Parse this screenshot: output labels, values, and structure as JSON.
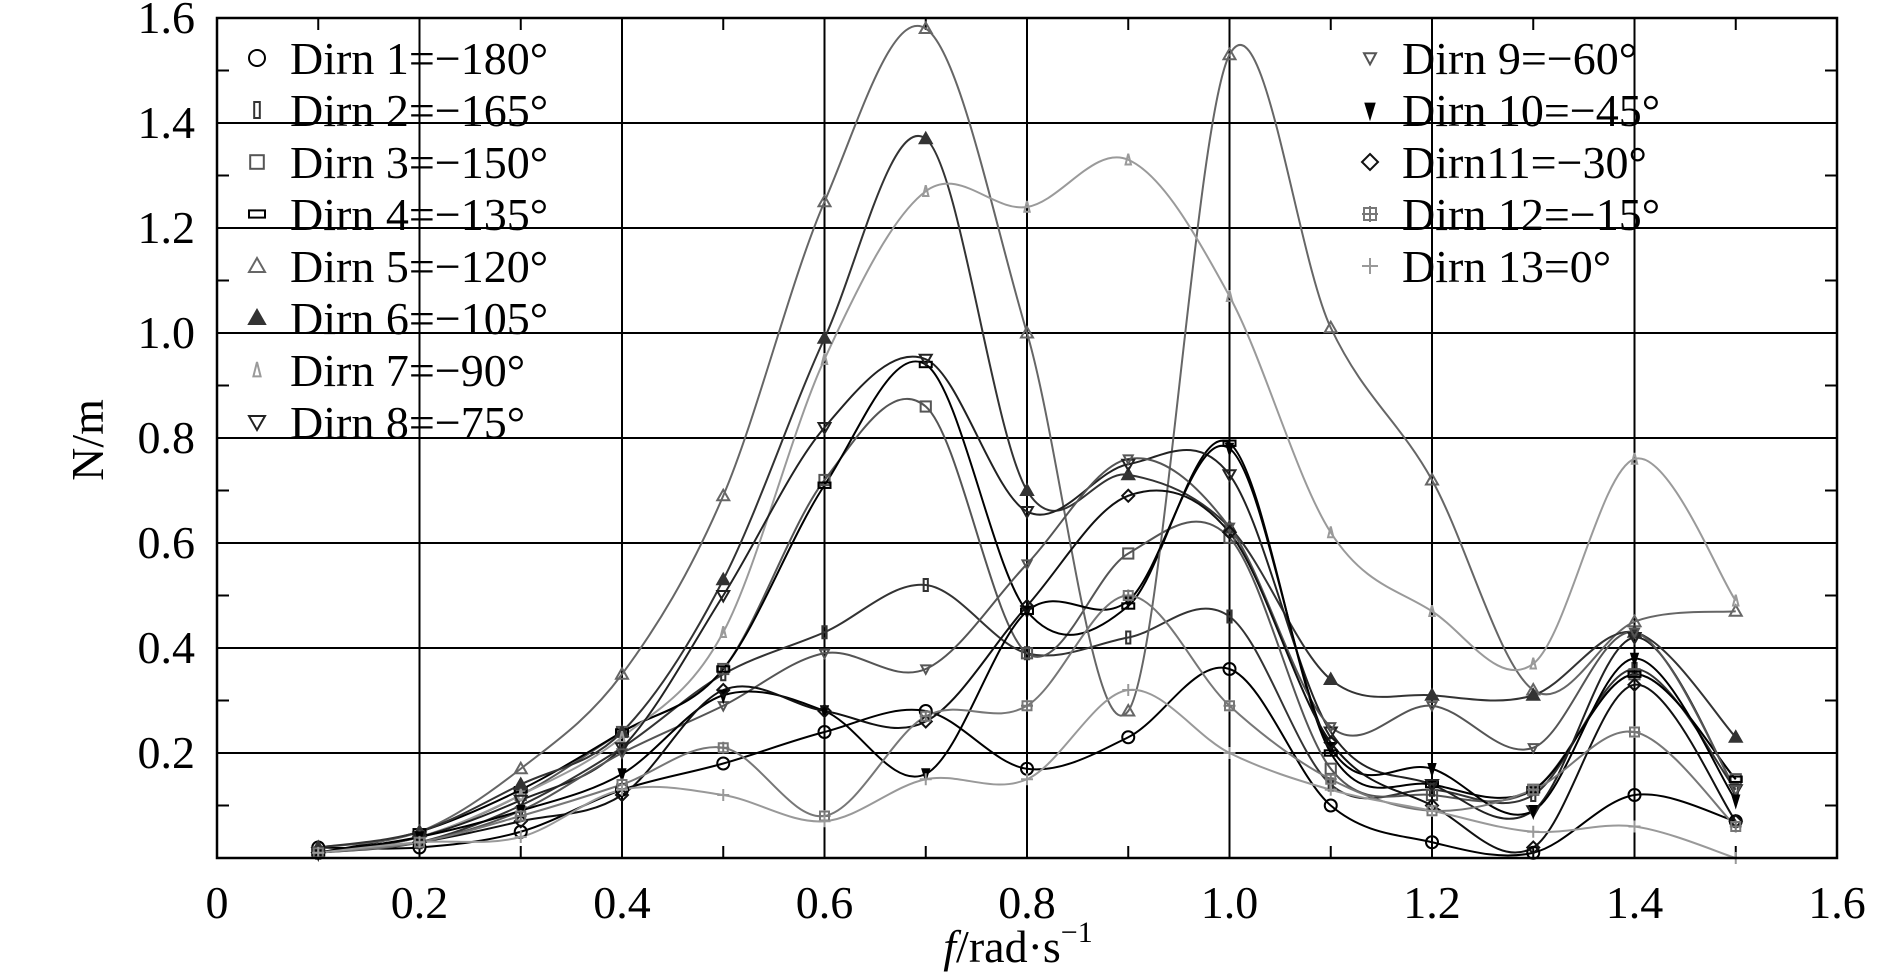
{
  "chart_data": {
    "type": "line",
    "title": "",
    "xlabel_italic": "f",
    "xlabel_rest": "/rad·s",
    "xlabel_sup": "−1",
    "ylabel": "N/m",
    "xlim": [
      0,
      1.6
    ],
    "ylim": [
      0,
      1.6
    ],
    "x_ticks": [
      0,
      0.2,
      0.4,
      0.6,
      0.8,
      1.0,
      1.2,
      1.4,
      1.6
    ],
    "x_tick_labels": [
      "0",
      "0.2",
      "0.4",
      "0.6",
      "0.8",
      "1.0",
      "1.2",
      "1.4",
      "1.6"
    ],
    "y_ticks": [
      0.2,
      0.4,
      0.6,
      0.8,
      1.0,
      1.2,
      1.4,
      1.6
    ],
    "y_tick_labels": [
      "0.2",
      "0.4",
      "0.6",
      "0.8",
      "1.0",
      "1.2",
      "1.4",
      "1.6"
    ],
    "grid": true,
    "x": [
      0.1,
      0.2,
      0.3,
      0.4,
      0.5,
      0.6,
      0.7,
      0.8,
      0.9,
      1.0,
      1.1,
      1.2,
      1.3,
      1.4,
      1.5
    ],
    "legend_left": "top-left",
    "legend_right": "top-right",
    "series": [
      {
        "name": "Dirn 1=−180°",
        "marker": "circle",
        "color": "#000000",
        "values": [
          0.02,
          0.02,
          0.05,
          0.13,
          0.18,
          0.24,
          0.28,
          0.17,
          0.23,
          0.36,
          0.1,
          0.03,
          0.01,
          0.12,
          0.07
        ]
      },
      {
        "name": "Dirn 2=−165°",
        "marker": "rect-thin",
        "color": "#333333",
        "values": [
          0.01,
          0.03,
          0.1,
          0.21,
          0.35,
          0.43,
          0.52,
          0.39,
          0.42,
          0.46,
          0.14,
          0.13,
          0.12,
          0.36,
          0.13
        ]
      },
      {
        "name": "Dirn 3=−150°",
        "marker": "square",
        "color": "#555555",
        "values": [
          0.01,
          0.04,
          0.12,
          0.24,
          0.36,
          0.72,
          0.86,
          0.39,
          0.58,
          0.61,
          0.17,
          0.12,
          0.13,
          0.35,
          0.15
        ]
      },
      {
        "name": "Dirn 4=−135°",
        "marker": "rect-wide",
        "color": "#000000",
        "values": [
          0.01,
          0.05,
          0.13,
          0.24,
          0.36,
          0.71,
          0.94,
          0.47,
          0.48,
          0.79,
          0.2,
          0.14,
          0.13,
          0.35,
          0.15
        ]
      },
      {
        "name": "Dirn 5=−120°",
        "marker": "triangle",
        "color": "#666666",
        "values": [
          0.02,
          0.05,
          0.17,
          0.35,
          0.69,
          1.25,
          1.58,
          1.0,
          0.28,
          1.53,
          1.01,
          0.72,
          0.32,
          0.45,
          0.47
        ]
      },
      {
        "name": "Dirn 6=−105°",
        "marker": "triangle-filled",
        "color": "#333333",
        "values": [
          0.02,
          0.05,
          0.14,
          0.24,
          0.53,
          0.99,
          1.37,
          0.7,
          0.73,
          0.63,
          0.34,
          0.31,
          0.31,
          0.43,
          0.23
        ]
      },
      {
        "name": "Dirn 7=−90°",
        "marker": "triangle-small",
        "color": "#9a9a9a",
        "values": [
          0.01,
          0.04,
          0.12,
          0.23,
          0.43,
          0.95,
          1.27,
          1.24,
          1.33,
          1.07,
          0.62,
          0.47,
          0.37,
          0.76,
          0.49
        ]
      },
      {
        "name": "Dirn 8=−75°",
        "marker": "triangle-down",
        "color": "#222222",
        "values": [
          0.01,
          0.04,
          0.11,
          0.21,
          0.5,
          0.82,
          0.95,
          0.66,
          0.75,
          0.73,
          0.24,
          0.14,
          0.09,
          0.42,
          0.13
        ]
      },
      {
        "name": "Dirn 9=−60°",
        "marker": "triangle-down-small",
        "color": "#555555",
        "values": [
          0.01,
          0.03,
          0.09,
          0.2,
          0.29,
          0.39,
          0.36,
          0.56,
          0.76,
          0.63,
          0.25,
          0.29,
          0.21,
          0.43,
          0.13
        ]
      },
      {
        "name": "Dirn 10=−45°",
        "marker": "triangle-down-filled",
        "color": "#000000",
        "values": [
          0.01,
          0.04,
          0.09,
          0.16,
          0.31,
          0.28,
          0.16,
          0.47,
          0.49,
          0.78,
          0.21,
          0.17,
          0.09,
          0.38,
          0.11
        ]
      },
      {
        "name": "Dirn11=−30°",
        "marker": "diamond",
        "color": "#111111",
        "values": [
          0.01,
          0.03,
          0.07,
          0.12,
          0.32,
          0.28,
          0.26,
          0.48,
          0.69,
          0.62,
          0.22,
          0.1,
          0.02,
          0.33,
          0.07
        ]
      },
      {
        "name": "Dirn 12=−15°",
        "marker": "cross-square",
        "color": "#777777",
        "values": [
          0.01,
          0.03,
          0.08,
          0.14,
          0.21,
          0.08,
          0.27,
          0.29,
          0.5,
          0.29,
          0.15,
          0.09,
          0.13,
          0.24,
          0.06
        ]
      },
      {
        "name": "Dirn 13=0°",
        "marker": "plus",
        "color": "#999999",
        "values": [
          0.01,
          0.03,
          0.04,
          0.13,
          0.12,
          0.07,
          0.15,
          0.15,
          0.32,
          0.2,
          0.13,
          0.09,
          0.05,
          0.06,
          0.0
        ]
      }
    ]
  }
}
